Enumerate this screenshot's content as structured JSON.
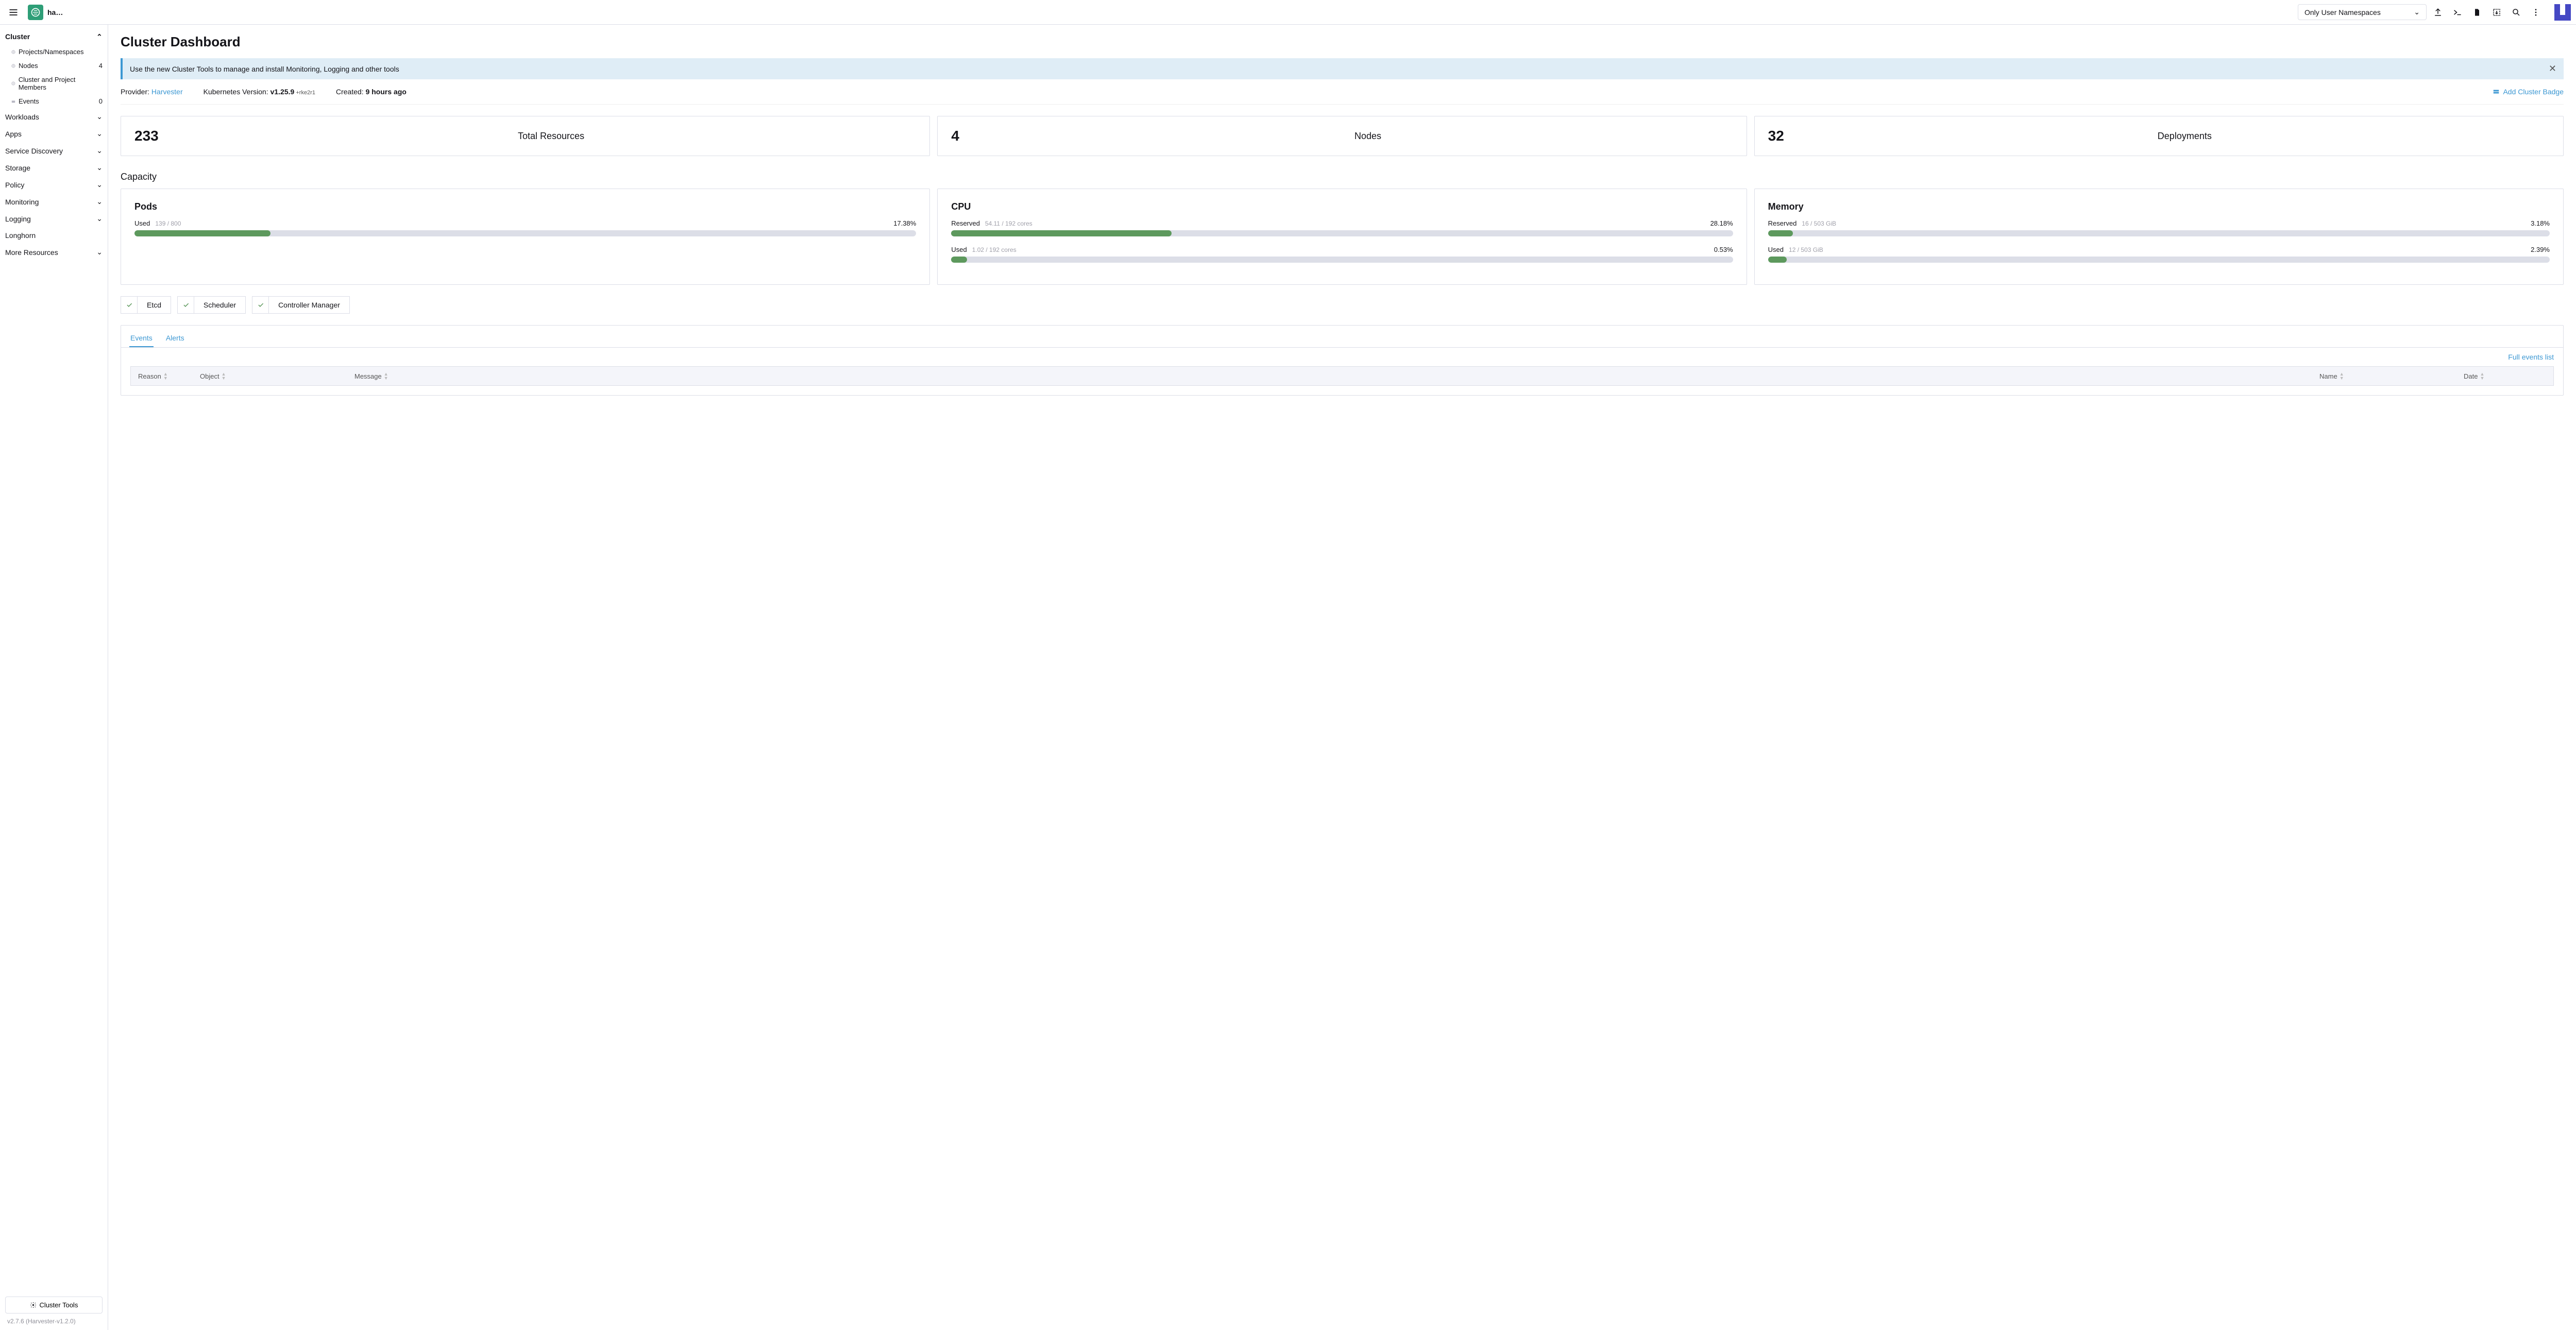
{
  "topbar": {
    "cluster_name": "ha…",
    "ns_selector": "Only User Namespaces"
  },
  "sidebar": {
    "section_cluster": "Cluster",
    "items": [
      {
        "label": "Projects/Namespaces",
        "count": ""
      },
      {
        "label": "Nodes",
        "count": "4"
      },
      {
        "label": "Cluster and Project Members",
        "count": ""
      },
      {
        "label": "Events",
        "count": "0"
      }
    ],
    "groups": [
      "Workloads",
      "Apps",
      "Service Discovery",
      "Storage",
      "Policy",
      "Monitoring",
      "Logging",
      "Longhorn",
      "More Resources"
    ],
    "cluster_tools": "Cluster Tools",
    "version": "v2.7.6  (Harvester-v1.2.0)"
  },
  "page": {
    "title": "Cluster Dashboard",
    "banner": "Use the new Cluster Tools to manage and install Monitoring, Logging and other tools",
    "provider_label": "Provider: ",
    "provider_value": "Harvester",
    "k8s_label": "Kubernetes Version: ",
    "k8s_version": "v1.25.9",
    "k8s_sub": " +rke2r1",
    "created_label": "Created: ",
    "created_value": "9 hours ago",
    "add_badge": "Add Cluster Badge"
  },
  "stats": [
    {
      "value": "233",
      "label": "Total Resources"
    },
    {
      "value": "4",
      "label": "Nodes"
    },
    {
      "value": "32",
      "label": "Deployments"
    }
  ],
  "capacity": {
    "heading": "Capacity",
    "cards": [
      {
        "title": "Pods",
        "metrics": [
          {
            "name": "Used",
            "detail": "139 / 800",
            "pct": "17.38%",
            "fill": 17.38
          }
        ]
      },
      {
        "title": "CPU",
        "metrics": [
          {
            "name": "Reserved",
            "detail": "54.11 / 192 cores",
            "pct": "28.18%",
            "fill": 28.18
          },
          {
            "name": "Used",
            "detail": "1.02 / 192 cores",
            "pct": "0.53%",
            "fill": 2
          }
        ]
      },
      {
        "title": "Memory",
        "metrics": [
          {
            "name": "Reserved",
            "detail": "16 / 503 GiB",
            "pct": "3.18%",
            "fill": 3.18
          },
          {
            "name": "Used",
            "detail": "12 / 503 GiB",
            "pct": "2.39%",
            "fill": 2.39
          }
        ]
      }
    ]
  },
  "health": [
    "Etcd",
    "Scheduler",
    "Controller Manager"
  ],
  "tabs": {
    "events": "Events",
    "alerts": "Alerts",
    "full_link": "Full events list",
    "columns": [
      "Reason",
      "Object",
      "Message",
      "Name",
      "Date"
    ]
  },
  "colors": {
    "accent": "#3d98d3",
    "bar_fill": "#5d995d",
    "bar_bg": "#dcdee7",
    "banner_bg": "#dfedf6"
  }
}
